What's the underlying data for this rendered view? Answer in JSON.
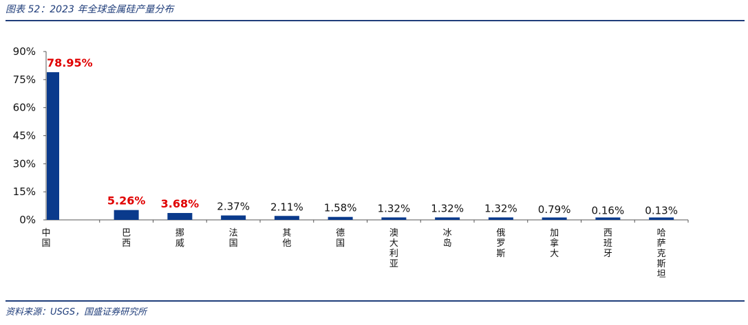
{
  "header": {
    "title": "图表 52：2023 年全球金属硅产量分布"
  },
  "footer": {
    "source": "资料来源：USGS，国盛证券研究所"
  },
  "chart_data": {
    "type": "bar",
    "title": "",
    "xlabel": "",
    "ylabel": "",
    "ylim": [
      0,
      90
    ],
    "y_ticks": [
      "0%",
      "15%",
      "30%",
      "45%",
      "60%",
      "75%",
      "90%"
    ],
    "y_tick_values": [
      0,
      15,
      30,
      45,
      60,
      75,
      90
    ],
    "categories": [
      "中国",
      "巴西",
      "挪威",
      "法国",
      "其他",
      "德国",
      "澳大利亚",
      "冰岛",
      "俄罗斯",
      "加拿大",
      "西班牙",
      "哈萨克斯坦"
    ],
    "values": [
      78.95,
      5.26,
      3.68,
      2.37,
      2.11,
      1.58,
      1.32,
      1.32,
      1.32,
      0.79,
      0.16,
      0.13
    ],
    "data_labels": [
      "78.95%",
      "5.26%",
      "3.68%",
      "2.37%",
      "2.11%",
      "1.58%",
      "1.32%",
      "1.32%",
      "1.32%",
      "0.79%",
      "0.16%",
      "0.13%"
    ],
    "highlighted": [
      true,
      true,
      true,
      false,
      false,
      false,
      false,
      false,
      false,
      false,
      false,
      false
    ],
    "bar_color": "#0a3a8c",
    "highlight_color": "#e00000",
    "grid": false,
    "legend": "none"
  }
}
